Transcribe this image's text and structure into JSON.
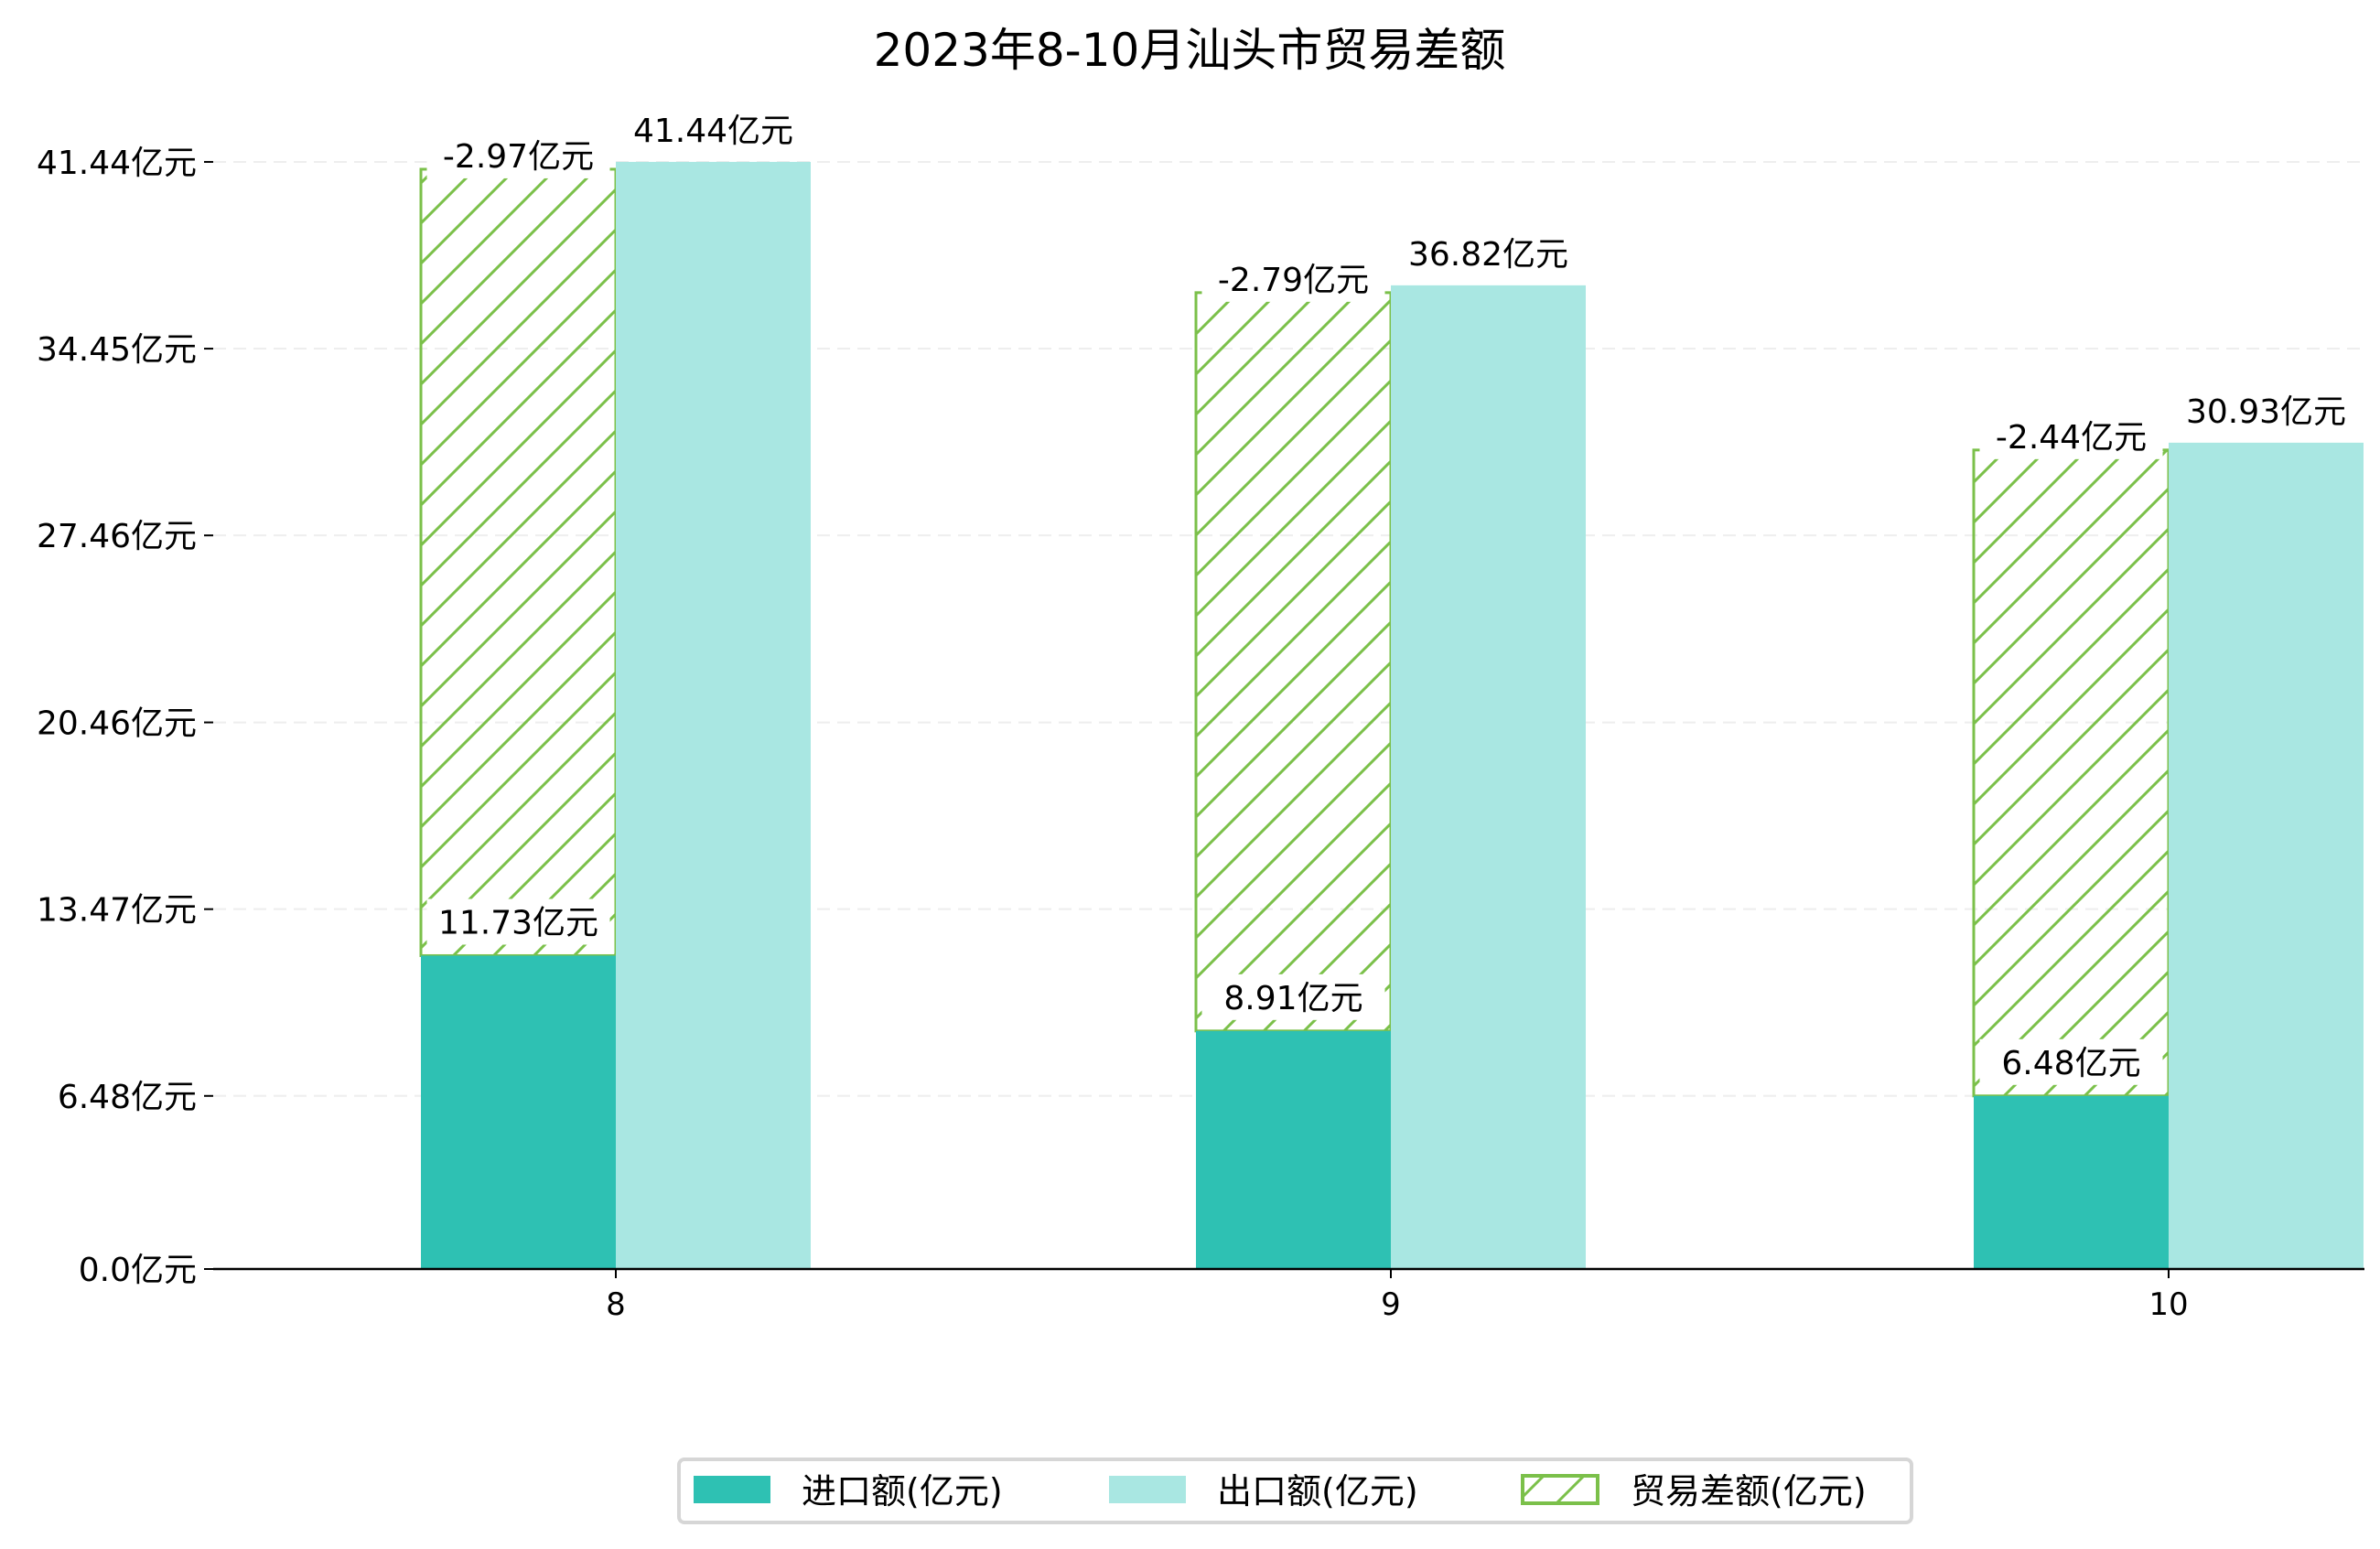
{
  "chart_data": {
    "type": "bar",
    "title": "2023年8-10月汕头市贸易差额",
    "categories": [
      "8",
      "9",
      "10"
    ],
    "series": [
      {
        "name": "进口额(亿元)",
        "values": [
          11.73,
          8.91,
          6.48
        ],
        "labels": [
          "11.73亿元",
          "8.91亿元",
          "6.48亿元"
        ],
        "color": "#2EC1B3"
      },
      {
        "name": "出口额(亿元)",
        "values": [
          41.44,
          36.82,
          30.93
        ],
        "labels": [
          "41.44亿元",
          "36.82亿元",
          "30.93亿元"
        ],
        "color": "#A9E7E2"
      },
      {
        "name": "贸易差额(亿元)",
        "values": [
          -2.97,
          -2.79,
          -2.44
        ],
        "labels": [
          "-2.97亿元",
          "-2.79亿元",
          "-2.44亿元"
        ],
        "color": "#7BC04A",
        "style": "hatched"
      }
    ],
    "yticks": [
      0.0,
      6.48,
      13.47,
      20.46,
      27.46,
      34.45,
      41.44
    ],
    "ytick_labels": [
      "0.0亿元",
      "6.48亿元",
      "13.47亿元",
      "20.46亿元",
      "27.46亿元",
      "34.45亿元",
      "41.44亿元"
    ],
    "ylim": [
      0,
      42
    ],
    "xlabel": "",
    "ylabel": "",
    "grid": true,
    "legend": "bottom-center"
  }
}
